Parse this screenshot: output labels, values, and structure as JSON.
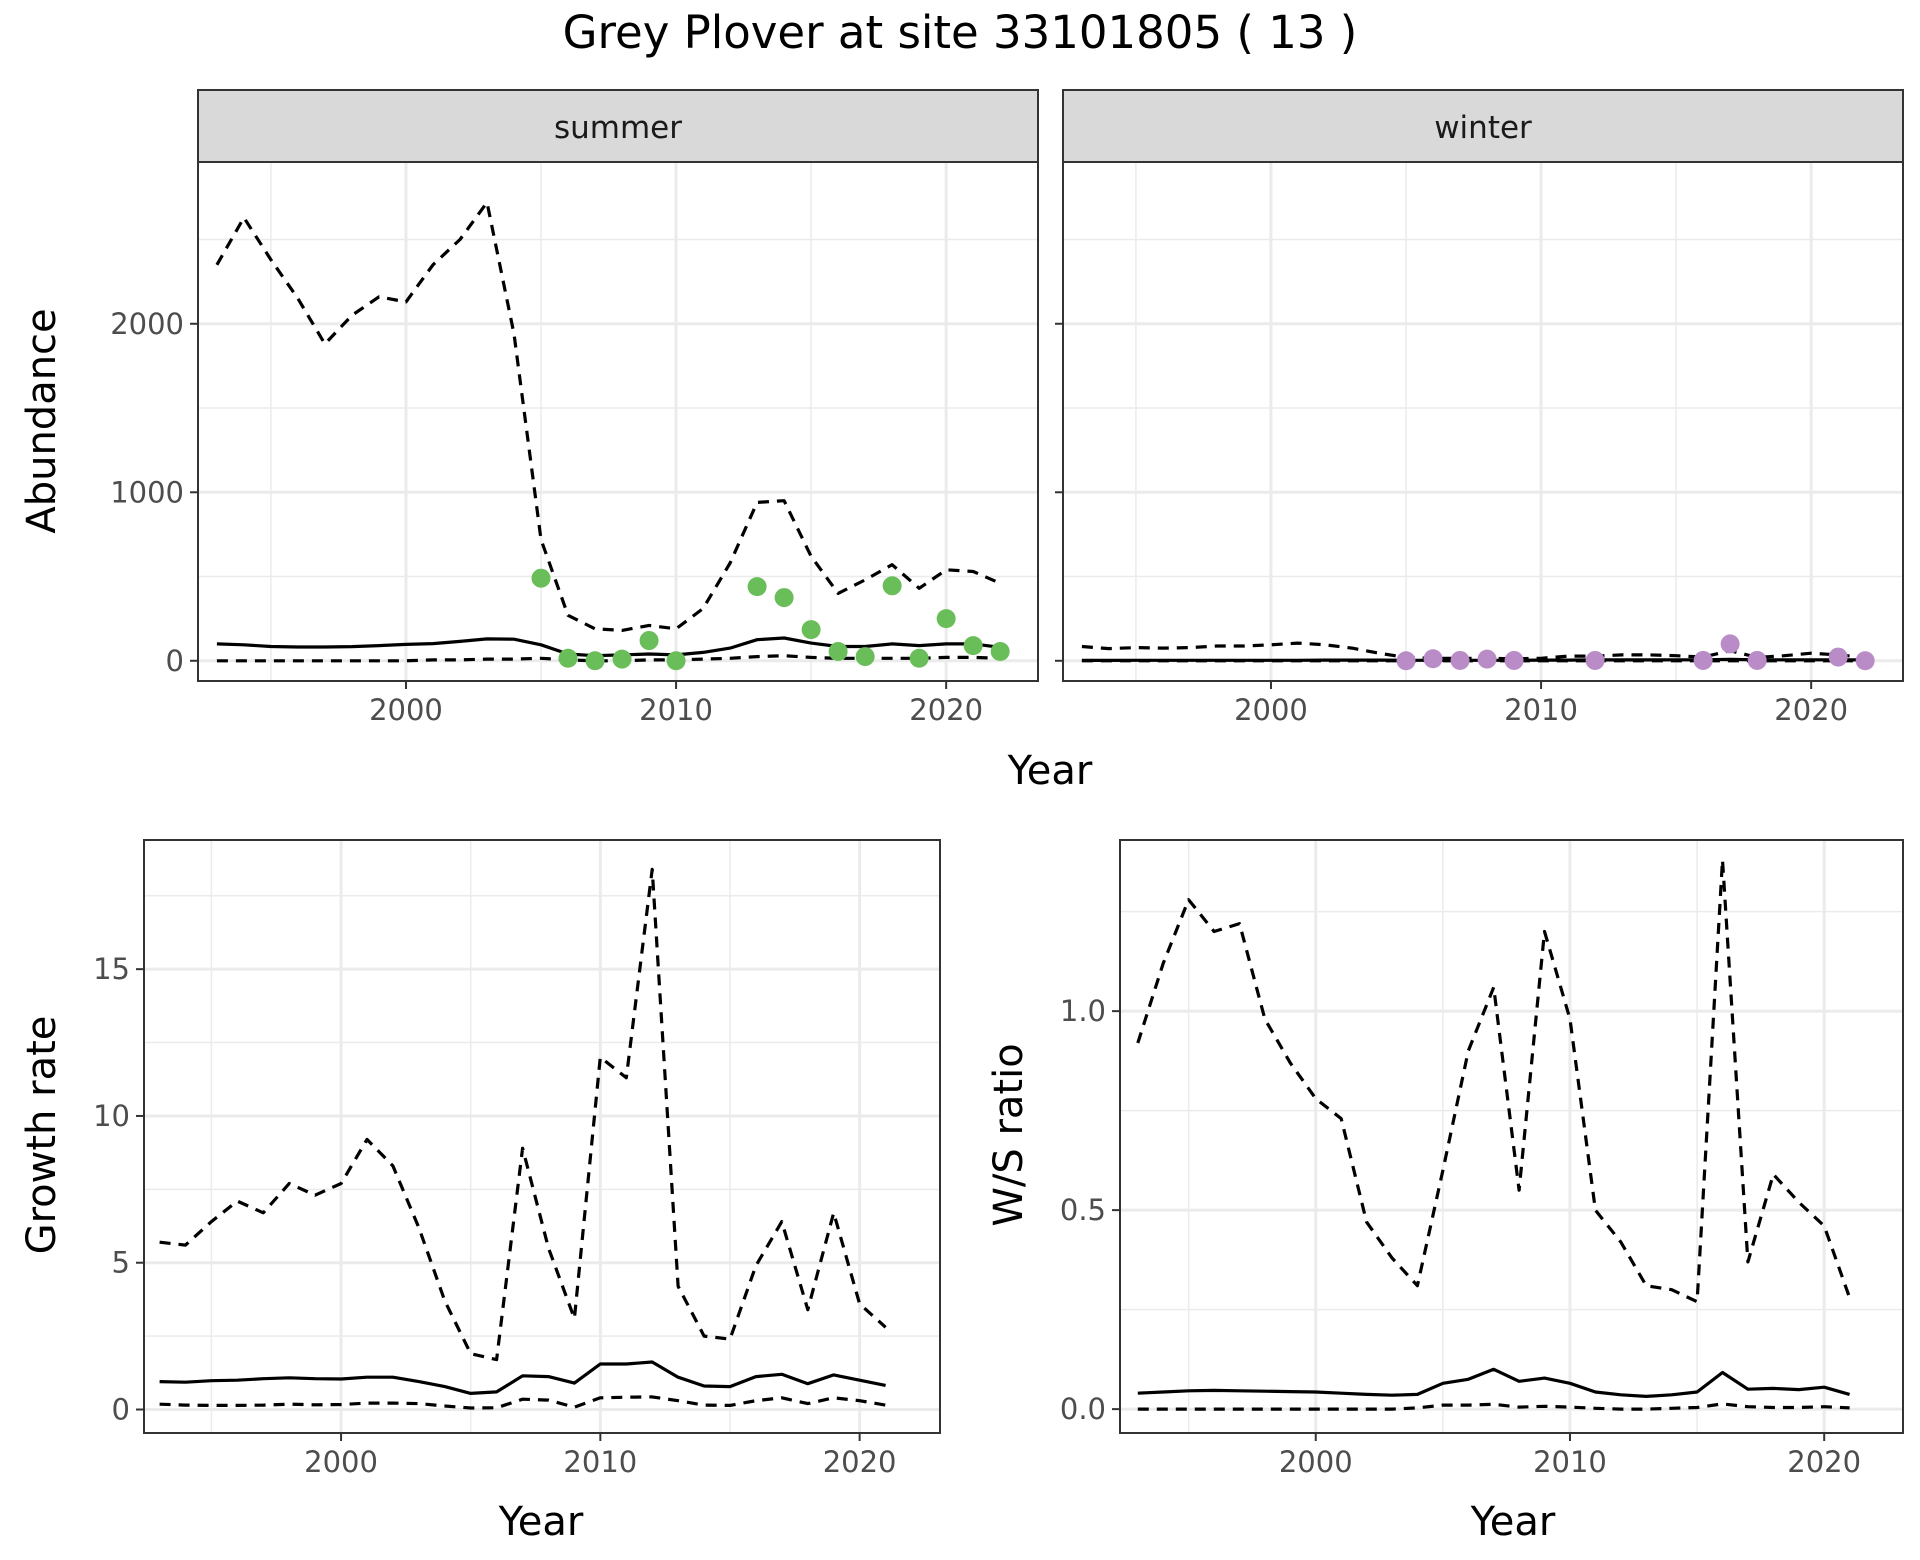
{
  "title": "Grey Plover at site 33101805 ( 13 )",
  "colors": {
    "summer_points": "#6ABE5A",
    "winter_points": "#B98CC8",
    "strip_bg": "#D9D9D9",
    "grid": "#EBEBEB",
    "line": "#000000"
  },
  "chart_data": [
    {
      "type": "line",
      "panel": "abundance",
      "facets": [
        "summer",
        "winter"
      ],
      "xlabel": "Year",
      "ylabel": "Abundance",
      "xlim": [
        1992.3,
        2023.4
      ],
      "ylim": [
        -120,
        2960
      ],
      "xticks": [
        2000,
        2010,
        2020
      ],
      "yticks": [
        0,
        1000,
        2000
      ],
      "grid": true,
      "facet_data": [
        {
          "name": "summer",
          "point_color": "#6ABE5A",
          "x": [
            1993,
            1994,
            1995,
            1996,
            1997,
            1998,
            1999,
            2000,
            2001,
            2002,
            2003,
            2004,
            2005,
            2006,
            2007,
            2008,
            2009,
            2010,
            2011,
            2012,
            2013,
            2014,
            2015,
            2016,
            2017,
            2018,
            2019,
            2020,
            2021,
            2022
          ],
          "mean": [
            100,
            95,
            85,
            82,
            82,
            84,
            90,
            97,
            102,
            115,
            130,
            128,
            95,
            40,
            30,
            35,
            40,
            35,
            50,
            75,
            125,
            135,
            105,
            85,
            85,
            100,
            90,
            100,
            100,
            80
          ],
          "upper": [
            2350,
            2630,
            2380,
            2150,
            1880,
            2050,
            2160,
            2130,
            2350,
            2500,
            2720,
            1940,
            720,
            270,
            190,
            180,
            210,
            190,
            310,
            580,
            940,
            950,
            620,
            400,
            480,
            570,
            430,
            540,
            530,
            460
          ],
          "lower": [
            0,
            0,
            0,
            0,
            0,
            0,
            0,
            0,
            5,
            5,
            10,
            10,
            15,
            5,
            0,
            0,
            5,
            5,
            10,
            15,
            25,
            30,
            20,
            15,
            15,
            15,
            15,
            20,
            20,
            15
          ],
          "obs_x": [
            2005,
            2006,
            2007,
            2008,
            2009,
            2010,
            2013,
            2014,
            2015,
            2016,
            2017,
            2018,
            2019,
            2020,
            2021,
            2022
          ],
          "obs_y": [
            490,
            15,
            0,
            10,
            120,
            0,
            440,
            375,
            185,
            55,
            25,
            445,
            15,
            250,
            90,
            55
          ]
        },
        {
          "name": "winter",
          "point_color": "#B98CC8",
          "x": [
            1993,
            1994,
            1995,
            1996,
            1997,
            1998,
            1999,
            2000,
            2001,
            2002,
            2003,
            2004,
            2005,
            2006,
            2007,
            2008,
            2009,
            2010,
            2011,
            2012,
            2013,
            2014,
            2015,
            2016,
            2017,
            2018,
            2019,
            2020,
            2021,
            2022
          ],
          "mean": [
            2,
            2,
            3,
            3,
            3,
            3,
            3,
            3,
            3,
            4,
            4,
            4,
            3,
            3,
            3,
            3,
            3,
            4,
            4,
            5,
            5,
            5,
            6,
            6,
            8,
            6,
            6,
            6,
            6,
            5
          ],
          "upper": [
            85,
            72,
            78,
            75,
            78,
            88,
            88,
            95,
            105,
            95,
            75,
            45,
            20,
            15,
            15,
            15,
            12,
            15,
            28,
            28,
            35,
            35,
            30,
            22,
            60,
            20,
            30,
            45,
            35,
            20
          ],
          "lower": [
            0,
            0,
            0,
            0,
            0,
            0,
            0,
            0,
            0,
            0,
            0,
            0,
            0,
            0,
            0,
            0,
            0,
            0,
            0,
            0,
            0,
            0,
            0,
            0,
            0,
            0,
            0,
            0,
            0,
            0
          ],
          "obs_x": [
            2005,
            2006,
            2007,
            2008,
            2009,
            2012,
            2016,
            2017,
            2018,
            2021,
            2022
          ],
          "obs_y": [
            0,
            12,
            2,
            10,
            2,
            2,
            2,
            100,
            2,
            22,
            0
          ]
        }
      ]
    },
    {
      "type": "line",
      "panel": "growth",
      "xlabel": "Year",
      "ylabel": "Growth rate",
      "xlim": [
        1992.4,
        2023.1
      ],
      "ylim": [
        -0.8,
        19.4
      ],
      "xticks": [
        2000,
        2010,
        2020
      ],
      "yticks": [
        0,
        5,
        10,
        15
      ],
      "grid": true,
      "x": [
        1993,
        1994,
        1995,
        1996,
        1997,
        1998,
        1999,
        2000,
        2001,
        2002,
        2003,
        2004,
        2005,
        2006,
        2007,
        2008,
        2009,
        2010,
        2011,
        2012,
        2013,
        2014,
        2015,
        2016,
        2017,
        2018,
        2019,
        2020,
        2021
      ],
      "mean": [
        0.95,
        0.93,
        0.98,
        1.0,
        1.05,
        1.08,
        1.05,
        1.04,
        1.1,
        1.1,
        0.95,
        0.78,
        0.55,
        0.6,
        1.15,
        1.12,
        0.9,
        1.55,
        1.55,
        1.62,
        1.1,
        0.8,
        0.78,
        1.12,
        1.2,
        0.88,
        1.18,
        1.0,
        0.82
      ],
      "upper": [
        5.7,
        5.6,
        6.4,
        7.1,
        6.7,
        7.7,
        7.3,
        7.7,
        9.2,
        8.3,
        6.2,
        3.7,
        1.9,
        1.7,
        8.9,
        5.5,
        3.1,
        12.0,
        11.3,
        18.4,
        4.2,
        2.5,
        2.4,
        4.9,
        6.4,
        3.4,
        6.7,
        3.6,
        2.8
      ],
      "lower": [
        0.18,
        0.15,
        0.14,
        0.14,
        0.15,
        0.18,
        0.16,
        0.17,
        0.22,
        0.22,
        0.2,
        0.12,
        0.05,
        0.06,
        0.35,
        0.32,
        0.08,
        0.4,
        0.42,
        0.43,
        0.3,
        0.15,
        0.14,
        0.3,
        0.4,
        0.2,
        0.4,
        0.3,
        0.15
      ]
    },
    {
      "type": "line",
      "panel": "ratio",
      "xlabel": "Year",
      "ylabel": "W/S ratio",
      "xlim": [
        1992.3,
        2023.1
      ],
      "ylim": [
        -0.06,
        1.43
      ],
      "xticks": [
        2000,
        2010,
        2020
      ],
      "yticks": [
        0.0,
        0.5,
        1.0
      ],
      "ytick_labels": [
        "0.0",
        "0.5",
        "1.0"
      ],
      "grid": true,
      "x": [
        1993,
        1994,
        1995,
        1996,
        1997,
        1998,
        1999,
        2000,
        2001,
        2002,
        2003,
        2004,
        2005,
        2006,
        2007,
        2008,
        2009,
        2010,
        2011,
        2012,
        2013,
        2014,
        2015,
        2016,
        2017,
        2018,
        2019,
        2020,
        2021
      ],
      "mean": [
        0.04,
        0.043,
        0.046,
        0.047,
        0.046,
        0.045,
        0.044,
        0.043,
        0.04,
        0.037,
        0.035,
        0.037,
        0.065,
        0.075,
        0.1,
        0.07,
        0.078,
        0.065,
        0.043,
        0.036,
        0.032,
        0.036,
        0.043,
        0.092,
        0.05,
        0.052,
        0.049,
        0.055,
        0.037
      ],
      "upper": [
        0.92,
        1.12,
        1.28,
        1.2,
        1.22,
        0.98,
        0.87,
        0.78,
        0.73,
        0.47,
        0.38,
        0.31,
        0.6,
        0.9,
        1.06,
        0.55,
        1.2,
        0.98,
        0.5,
        0.42,
        0.31,
        0.3,
        0.27,
        1.38,
        0.37,
        0.59,
        0.52,
        0.46,
        0.28
      ],
      "lower": [
        0.0,
        0.0,
        0.0,
        0.0,
        0.0,
        0.0,
        0.0,
        0.0,
        0.0,
        0.0,
        0.0,
        0.003,
        0.01,
        0.01,
        0.012,
        0.005,
        0.007,
        0.005,
        0.002,
        0.0,
        0.0,
        0.002,
        0.004,
        0.013,
        0.006,
        0.004,
        0.004,
        0.006,
        0.003
      ]
    }
  ]
}
